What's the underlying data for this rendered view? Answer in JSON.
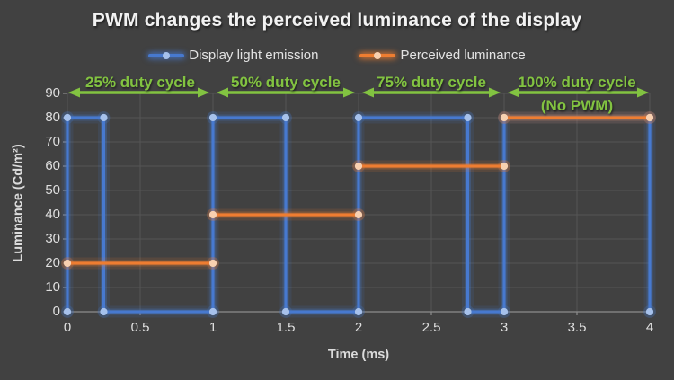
{
  "chart_data": {
    "type": "line",
    "title": "PWM changes the perceived luminance of the display",
    "xlabel": "Time (ms)",
    "ylabel": "Luminance (Cd/m²)",
    "xlim": [
      0,
      4
    ],
    "ylim": [
      0,
      90
    ],
    "x_ticks": [
      0,
      0.5,
      1,
      1.5,
      2,
      2.5,
      3,
      3.5,
      4
    ],
    "y_ticks": [
      0,
      10,
      20,
      30,
      40,
      50,
      60,
      70,
      80,
      90
    ],
    "grid": true,
    "legend_position": "top-center",
    "series": [
      {
        "name": "Display light emission",
        "color": "#4779CF",
        "marker_color": "#A6C1EB",
        "points": [
          [
            0,
            0
          ],
          [
            0,
            80
          ],
          [
            0.25,
            80
          ],
          [
            0.25,
            0
          ],
          [
            1,
            0
          ],
          [
            1,
            80
          ],
          [
            1.5,
            80
          ],
          [
            1.5,
            0
          ],
          [
            2,
            0
          ],
          [
            2,
            80
          ],
          [
            2.75,
            80
          ],
          [
            2.75,
            0
          ],
          [
            3,
            0
          ],
          [
            3,
            80
          ],
          [
            4,
            80
          ],
          [
            4,
            0
          ]
        ]
      },
      {
        "name": "Perceived luminance",
        "color": "#EE7D31",
        "marker_color": "#F8D0B0",
        "segments": [
          [
            [
              0,
              20
            ],
            [
              1,
              20
            ]
          ],
          [
            [
              1,
              40
            ],
            [
              2,
              40
            ]
          ],
          [
            [
              2,
              60
            ],
            [
              3,
              60
            ]
          ],
          [
            [
              3,
              80
            ],
            [
              4,
              80
            ]
          ]
        ]
      }
    ],
    "annotations": [
      {
        "label": "25% duty cycle",
        "sub": "",
        "x_start": 0,
        "x_end": 1
      },
      {
        "label": "50% duty cycle",
        "sub": "",
        "x_start": 1,
        "x_end": 2
      },
      {
        "label": "75% duty cycle",
        "sub": "",
        "x_start": 2,
        "x_end": 3
      },
      {
        "label": "100% duty cycle",
        "sub": "(No PWM)",
        "x_start": 3,
        "x_end": 4
      }
    ],
    "annotation_color": "#82C341",
    "colors": {
      "background": "#414141",
      "grid": "#555555",
      "axis": "#8C8C8C",
      "tick_label": "#DFDFDF",
      "axis_title": "#DCDCDC",
      "legend_text": "#E3E3E3",
      "title_text": "#F2F2F2"
    }
  }
}
